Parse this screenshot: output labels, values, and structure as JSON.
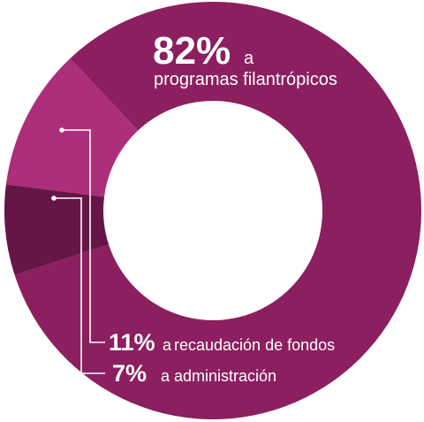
{
  "chart_data": {
    "type": "pie",
    "style": "donut",
    "slices": [
      {
        "name": "programas filantrópicos",
        "value": 82,
        "pct_label": "82%",
        "connector": "a",
        "label": "programas filantrópicos",
        "color": "#8c1f5f"
      },
      {
        "name": "recaudación de fondos",
        "value": 11,
        "pct_label": "11%",
        "connector": "a",
        "label": "recaudación de fondos",
        "color": "#ad2e7a"
      },
      {
        "name": "administración",
        "value": 7,
        "pct_label": "7%",
        "connector": "a",
        "label": "administración",
        "color": "#661646"
      }
    ],
    "leader_color": "#ffffff"
  }
}
